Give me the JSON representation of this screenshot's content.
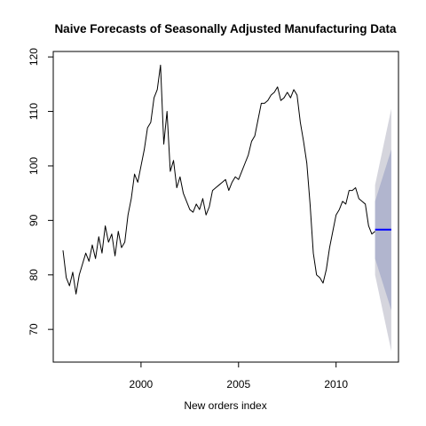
{
  "chart_data": {
    "type": "line",
    "title": "Naive Forecasts of Seasonally Adjusted Manufacturing Data",
    "xlabel": "New orders index",
    "ylabel": "",
    "xlim": [
      1995.5,
      2013.2
    ],
    "ylim": [
      64,
      121
    ],
    "x_ticks": [
      2000,
      2005,
      2010
    ],
    "x_tick_labels": [
      "2000",
      "2005",
      "2010"
    ],
    "y_ticks": [
      70,
      80,
      90,
      100,
      110,
      120
    ],
    "y_tick_labels": [
      "70",
      "80",
      "90",
      "100",
      "110",
      "120"
    ],
    "grid": false,
    "legend": "none",
    "colors": {
      "series": "#000000",
      "forecast": "#0000ff",
      "pi_80": "#b1b5ce",
      "pi_95": "#d5d5dd"
    },
    "series": [
      {
        "kind": "observed",
        "x": [
          1996.0,
          1996.167,
          1996.333,
          1996.5,
          1996.667,
          1996.833,
          1997.0,
          1997.167,
          1997.333,
          1997.5,
          1997.667,
          1997.833,
          1998.0,
          1998.167,
          1998.333,
          1998.5,
          1998.667,
          1998.833,
          1999.0,
          1999.167,
          1999.333,
          1999.5,
          1999.667,
          1999.833,
          2000.0,
          2000.167,
          2000.333,
          2000.5,
          2000.667,
          2000.833,
          2001.0,
          2001.167,
          2001.333,
          2001.5,
          2001.667,
          2001.833,
          2002.0,
          2002.167,
          2002.333,
          2002.5,
          2002.667,
          2002.833,
          2003.0,
          2003.167,
          2003.333,
          2003.5,
          2003.667,
          2003.833,
          2004.0,
          2004.167,
          2004.333,
          2004.5,
          2004.667,
          2004.833,
          2005.0,
          2005.167,
          2005.333,
          2005.5,
          2005.667,
          2005.833,
          2006.0,
          2006.167,
          2006.333,
          2006.5,
          2006.667,
          2006.833,
          2007.0,
          2007.167,
          2007.333,
          2007.5,
          2007.667,
          2007.833,
          2008.0,
          2008.167,
          2008.333,
          2008.5,
          2008.667,
          2008.833,
          2009.0,
          2009.167,
          2009.333,
          2009.5,
          2009.667,
          2009.833,
          2010.0,
          2010.167,
          2010.333,
          2010.5,
          2010.667,
          2010.833,
          2011.0,
          2011.167,
          2011.333,
          2011.5,
          2011.667,
          2011.833,
          2012.0
        ],
        "y": [
          84.5,
          79.5,
          78.0,
          80.5,
          76.5,
          80.0,
          82.0,
          84.0,
          82.5,
          85.5,
          83.0,
          87.0,
          84.0,
          89.0,
          86.0,
          87.5,
          83.5,
          88.0,
          85.0,
          86.0,
          91.0,
          94.0,
          98.5,
          97.0,
          100.0,
          103.0,
          107.0,
          108.0,
          112.5,
          114.0,
          118.5,
          104.0,
          110.0,
          99.0,
          101.0,
          96.0,
          98.0,
          95.0,
          93.5,
          92.0,
          91.5,
          93.0,
          92.0,
          94.0,
          91.0,
          92.5,
          95.5,
          96.0,
          96.5,
          97.0,
          97.5,
          95.5,
          97.0,
          98.0,
          97.5,
          99.0,
          100.5,
          102.0,
          104.5,
          105.5,
          108.5,
          111.5,
          111.5,
          112.0,
          113.0,
          113.5,
          114.5,
          112.0,
          112.5,
          113.5,
          112.5,
          114.0,
          113.0,
          108.0,
          104.5,
          100.5,
          93.0,
          84.0,
          80.0,
          79.5,
          78.5,
          81.0,
          85.0,
          88.0,
          91.0,
          92.0,
          93.5,
          93.0,
          95.5,
          95.5,
          96.0,
          94.0,
          93.5,
          93.0,
          89.0,
          87.5,
          88.0
        ]
      },
      {
        "kind": "forecast",
        "x": [
          2012.0,
          2012.833
        ],
        "y": [
          88.3,
          88.3
        ]
      }
    ],
    "intervals": [
      {
        "level": "95%",
        "x": [
          2012.0,
          2012.833
        ],
        "lower": [
          80.0,
          66.0
        ],
        "upper": [
          96.5,
          110.5
        ]
      },
      {
        "level": "80%",
        "x": [
          2012.0,
          2012.833
        ],
        "lower": [
          83.0,
          73.5
        ],
        "upper": [
          93.5,
          103.0
        ]
      }
    ]
  }
}
